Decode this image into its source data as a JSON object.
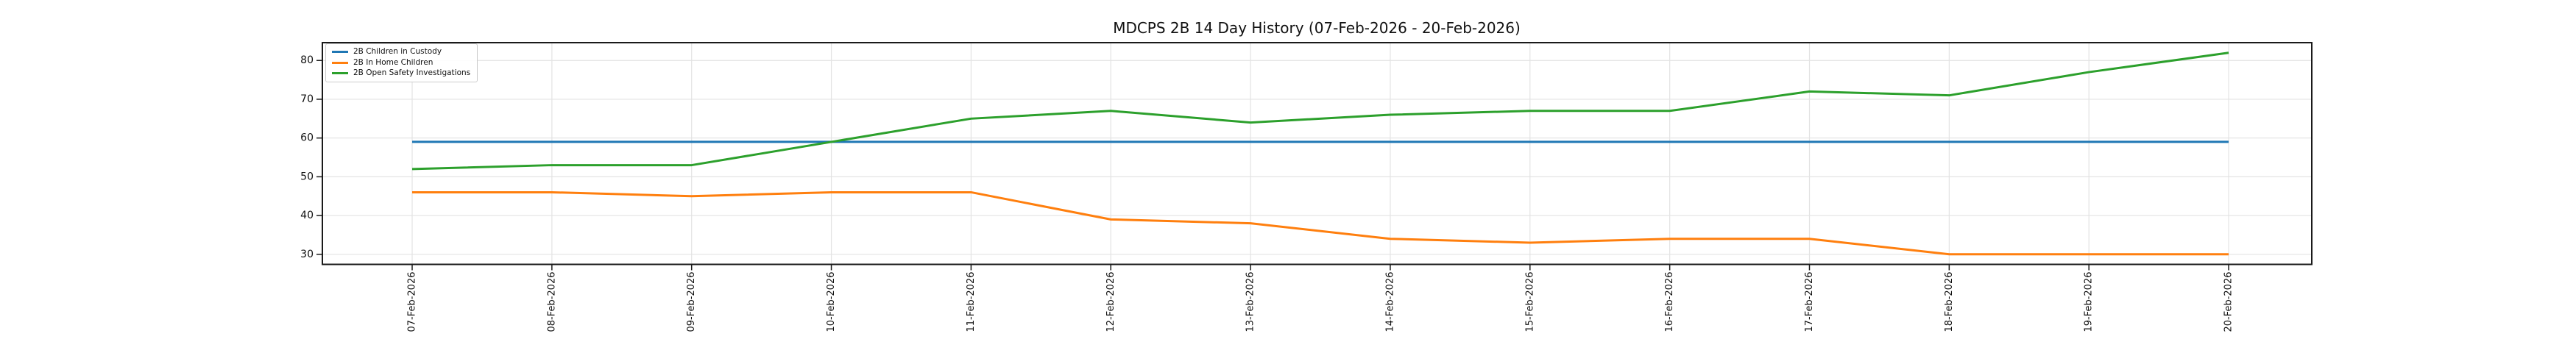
{
  "chart_data": {
    "type": "line",
    "title": "MDCPS 2B 14 Day History (07-Feb-2026 - 20-Feb-2026)",
    "xlabel": "",
    "ylabel": "",
    "categories": [
      "07-Feb-2026",
      "08-Feb-2026",
      "09-Feb-2026",
      "10-Feb-2026",
      "11-Feb-2026",
      "12-Feb-2026",
      "13-Feb-2026",
      "14-Feb-2026",
      "15-Feb-2026",
      "16-Feb-2026",
      "17-Feb-2026",
      "18-Feb-2026",
      "19-Feb-2026",
      "20-Feb-2026"
    ],
    "series": [
      {
        "name": "2B Children in Custody",
        "color": "#1f77b4",
        "values": [
          59,
          59,
          59,
          59,
          59,
          59,
          59,
          59,
          59,
          59,
          59,
          59,
          59,
          59
        ]
      },
      {
        "name": "2B In Home Children",
        "color": "#ff7f0e",
        "values": [
          46,
          46,
          45,
          46,
          46,
          39,
          38,
          34,
          33,
          34,
          34,
          30,
          30,
          30
        ]
      },
      {
        "name": "2B Open Safety Investigations",
        "color": "#2ca02c",
        "values": [
          52,
          53,
          53,
          59,
          65,
          67,
          64,
          66,
          67,
          67,
          72,
          71,
          77,
          82
        ]
      }
    ],
    "yticks": [
      30,
      40,
      50,
      60,
      70,
      80
    ],
    "ylim": [
      27.4,
      84.6
    ],
    "grid": true,
    "legend_position": "upper-left",
    "grid_color": "#e3e3e3",
    "spine_color": "#1a1a1a",
    "text_color": "#111111",
    "background": "#ffffff"
  }
}
